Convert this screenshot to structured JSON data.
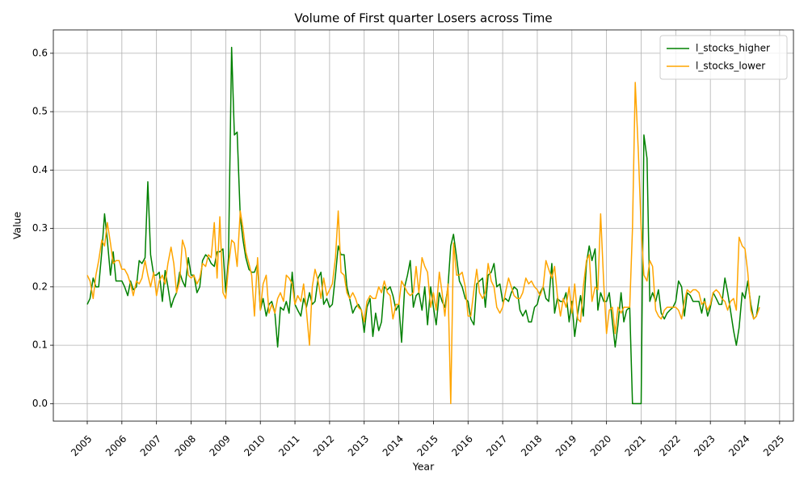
{
  "chart_data": {
    "type": "line",
    "title": "Volume of First quarter Losers across Time",
    "xlabel": "Year",
    "ylabel": "Value",
    "grid": true,
    "legend": "upper right",
    "xlim": [
      2004.02,
      2025.4
    ],
    "ylim": [
      -0.03,
      0.64
    ],
    "xticks": [
      2005,
      2006,
      2007,
      2008,
      2009,
      2010,
      2011,
      2012,
      2013,
      2014,
      2015,
      2016,
      2017,
      2018,
      2019,
      2020,
      2021,
      2022,
      2023,
      2024,
      2025
    ],
    "yticks": [
      {
        "value": 0,
        "label": "0.0"
      },
      0.1,
      0.2,
      0.3,
      0.4,
      0.5,
      0.6
    ],
    "x": [
      2005.0,
      2005.08,
      2005.17,
      2005.25,
      2005.33,
      2005.42,
      2005.5,
      2005.58,
      2005.67,
      2005.75,
      2005.83,
      2005.92,
      2006.0,
      2006.08,
      2006.17,
      2006.25,
      2006.33,
      2006.42,
      2006.5,
      2006.58,
      2006.67,
      2006.75,
      2006.83,
      2006.92,
      2007.0,
      2007.08,
      2007.17,
      2007.25,
      2007.33,
      2007.42,
      2007.5,
      2007.58,
      2007.67,
      2007.75,
      2007.83,
      2007.92,
      2008.0,
      2008.08,
      2008.17,
      2008.25,
      2008.33,
      2008.42,
      2008.5,
      2008.58,
      2008.67,
      2008.75,
      2008.83,
      2008.92,
      2009.0,
      2009.08,
      2009.17,
      2009.25,
      2009.33,
      2009.42,
      2009.5,
      2009.58,
      2009.67,
      2009.75,
      2009.83,
      2009.92,
      2010.0,
      2010.08,
      2010.17,
      2010.25,
      2010.33,
      2010.42,
      2010.5,
      2010.58,
      2010.67,
      2010.75,
      2010.83,
      2010.92,
      2011.0,
      2011.08,
      2011.17,
      2011.25,
      2011.33,
      2011.42,
      2011.5,
      2011.58,
      2011.67,
      2011.75,
      2011.83,
      2011.92,
      2012.0,
      2012.08,
      2012.17,
      2012.25,
      2012.33,
      2012.42,
      2012.5,
      2012.58,
      2012.67,
      2012.75,
      2012.83,
      2012.92,
      2013.0,
      2013.08,
      2013.17,
      2013.25,
      2013.33,
      2013.42,
      2013.5,
      2013.58,
      2013.67,
      2013.75,
      2013.83,
      2013.92,
      2014.0,
      2014.08,
      2014.17,
      2014.25,
      2014.33,
      2014.42,
      2014.5,
      2014.58,
      2014.67,
      2014.75,
      2014.83,
      2014.92,
      2015.0,
      2015.08,
      2015.17,
      2015.25,
      2015.33,
      2015.42,
      2015.5,
      2015.58,
      2015.67,
      2015.75,
      2015.83,
      2015.92,
      2016.0,
      2016.08,
      2016.17,
      2016.25,
      2016.33,
      2016.42,
      2016.5,
      2016.58,
      2016.67,
      2016.75,
      2016.83,
      2016.92,
      2017.0,
      2017.08,
      2017.17,
      2017.25,
      2017.33,
      2017.42,
      2017.5,
      2017.58,
      2017.67,
      2017.75,
      2017.83,
      2017.92,
      2018.0,
      2018.08,
      2018.17,
      2018.25,
      2018.33,
      2018.42,
      2018.5,
      2018.58,
      2018.67,
      2018.75,
      2018.83,
      2018.92,
      2019.0,
      2019.08,
      2019.17,
      2019.25,
      2019.33,
      2019.42,
      2019.5,
      2019.58,
      2019.67,
      2019.75,
      2019.83,
      2019.92,
      2020.0,
      2020.08,
      2020.17,
      2020.25,
      2020.33,
      2020.42,
      2020.5,
      2020.58,
      2020.67,
      2020.75,
      2020.83,
      2020.92,
      2021.0,
      2021.08,
      2021.17,
      2021.25,
      2021.33,
      2021.42,
      2021.5,
      2021.58,
      2021.67,
      2021.75,
      2021.83,
      2021.92,
      2022.0,
      2022.08,
      2022.17,
      2022.25,
      2022.33,
      2022.42,
      2022.5,
      2022.58,
      2022.67,
      2022.75,
      2022.83,
      2022.92,
      2023.0,
      2023.08,
      2023.17,
      2023.25,
      2023.33,
      2023.42,
      2023.5,
      2023.58,
      2023.67,
      2023.75,
      2023.83,
      2023.92,
      2024.0,
      2024.08,
      2024.17,
      2024.25,
      2024.33,
      2024.42
    ],
    "series": [
      {
        "name": "l_stocks_higher",
        "color": "#008000",
        "values": [
          0.17,
          0.18,
          0.215,
          0.2,
          0.2,
          0.26,
          0.325,
          0.28,
          0.22,
          0.26,
          0.21,
          0.21,
          0.21,
          0.2,
          0.185,
          0.21,
          0.195,
          0.2,
          0.245,
          0.24,
          0.25,
          0.38,
          0.255,
          0.22,
          0.22,
          0.225,
          0.175,
          0.228,
          0.2,
          0.165,
          0.18,
          0.19,
          0.225,
          0.21,
          0.2,
          0.25,
          0.22,
          0.22,
          0.19,
          0.2,
          0.245,
          0.255,
          0.25,
          0.24,
          0.235,
          0.26,
          0.26,
          0.265,
          0.19,
          0.25,
          0.61,
          0.46,
          0.465,
          0.32,
          0.28,
          0.25,
          0.23,
          0.225,
          0.225,
          0.24,
          0.16,
          0.18,
          0.15,
          0.17,
          0.175,
          0.155,
          0.097,
          0.165,
          0.16,
          0.175,
          0.155,
          0.225,
          0.17,
          0.16,
          0.15,
          0.18,
          0.165,
          0.19,
          0.17,
          0.175,
          0.215,
          0.225,
          0.17,
          0.18,
          0.165,
          0.17,
          0.22,
          0.27,
          0.255,
          0.255,
          0.2,
          0.18,
          0.155,
          0.165,
          0.17,
          0.16,
          0.122,
          0.165,
          0.18,
          0.115,
          0.155,
          0.125,
          0.14,
          0.2,
          0.195,
          0.2,
          0.185,
          0.16,
          0.17,
          0.105,
          0.2,
          0.22,
          0.245,
          0.165,
          0.185,
          0.19,
          0.16,
          0.2,
          0.135,
          0.2,
          0.165,
          0.135,
          0.19,
          0.175,
          0.165,
          0.2,
          0.27,
          0.29,
          0.25,
          0.21,
          0.2,
          0.18,
          0.175,
          0.145,
          0.135,
          0.205,
          0.21,
          0.215,
          0.165,
          0.22,
          0.225,
          0.24,
          0.2,
          0.205,
          0.175,
          0.18,
          0.175,
          0.19,
          0.2,
          0.195,
          0.16,
          0.15,
          0.16,
          0.14,
          0.14,
          0.165,
          0.17,
          0.19,
          0.2,
          0.18,
          0.175,
          0.24,
          0.155,
          0.18,
          0.175,
          0.175,
          0.19,
          0.14,
          0.175,
          0.115,
          0.155,
          0.185,
          0.15,
          0.24,
          0.27,
          0.245,
          0.265,
          0.16,
          0.19,
          0.175,
          0.175,
          0.19,
          0.14,
          0.097,
          0.135,
          0.19,
          0.14,
          0.16,
          0.165,
          0,
          0,
          0,
          0,
          0.46,
          0.42,
          0.175,
          0.19,
          0.175,
          0.195,
          0.155,
          0.145,
          0.155,
          0.16,
          0.165,
          0.175,
          0.21,
          0.2,
          0.15,
          0.19,
          0.185,
          0.175,
          0.175,
          0.175,
          0.155,
          0.18,
          0.15,
          0.165,
          0.19,
          0.18,
          0.17,
          0.17,
          0.215,
          0.19,
          0.16,
          0.125,
          0.1,
          0.13,
          0.19,
          0.18,
          0.21,
          0.17,
          0.145,
          0.15,
          0.185
        ]
      },
      {
        "name": "l_stocks_lower",
        "color": "#ffa500",
        "values": [
          0.22,
          0.21,
          0.18,
          0.22,
          0.245,
          0.28,
          0.27,
          0.31,
          0.275,
          0.24,
          0.245,
          0.245,
          0.23,
          0.23,
          0.22,
          0.205,
          0.185,
          0.21,
          0.205,
          0.215,
          0.245,
          0.22,
          0.2,
          0.225,
          0.185,
          0.21,
          0.22,
          0.205,
          0.24,
          0.268,
          0.24,
          0.19,
          0.21,
          0.28,
          0.265,
          0.22,
          0.215,
          0.22,
          0.205,
          0.215,
          0.24,
          0.235,
          0.255,
          0.25,
          0.31,
          0.215,
          0.32,
          0.19,
          0.18,
          0.235,
          0.28,
          0.275,
          0.235,
          0.33,
          0.3,
          0.26,
          0.24,
          0.22,
          0.15,
          0.25,
          0.16,
          0.205,
          0.22,
          0.155,
          0.17,
          0.155,
          0.18,
          0.19,
          0.175,
          0.22,
          0.215,
          0.205,
          0.17,
          0.185,
          0.175,
          0.205,
          0.16,
          0.1,
          0.2,
          0.23,
          0.21,
          0.18,
          0.215,
          0.185,
          0.195,
          0.205,
          0.25,
          0.33,
          0.225,
          0.22,
          0.19,
          0.18,
          0.19,
          0.18,
          0.165,
          0.16,
          0.14,
          0.175,
          0.185,
          0.18,
          0.18,
          0.2,
          0.19,
          0.21,
          0.19,
          0.185,
          0.145,
          0.17,
          0.17,
          0.21,
          0.2,
          0.19,
          0.185,
          0.19,
          0.235,
          0.19,
          0.25,
          0.235,
          0.225,
          0.165,
          0.19,
          0.16,
          0.225,
          0.19,
          0.15,
          0.205,
          0,
          0.275,
          0.22,
          0.22,
          0.225,
          0.2,
          0.15,
          0.15,
          0.195,
          0.23,
          0.19,
          0.18,
          0.19,
          0.24,
          0.21,
          0.2,
          0.165,
          0.155,
          0.165,
          0.19,
          0.215,
          0.2,
          0.185,
          0.18,
          0.18,
          0.19,
          0.215,
          0.205,
          0.21,
          0.2,
          0.195,
          0.185,
          0.2,
          0.245,
          0.23,
          0.215,
          0.235,
          0.185,
          0.15,
          0.18,
          0.165,
          0.2,
          0.155,
          0.205,
          0.145,
          0.14,
          0.2,
          0.245,
          0.255,
          0.175,
          0.2,
          0.195,
          0.325,
          0.205,
          0.12,
          0.16,
          0.165,
          0.12,
          0.165,
          0.155,
          0.165,
          0.165,
          0.165,
          0.3,
          0.55,
          0.43,
          0.3,
          0.22,
          0.21,
          0.245,
          0.235,
          0.16,
          0.15,
          0.145,
          0.16,
          0.165,
          0.165,
          0.165,
          0.165,
          0.16,
          0.145,
          0.175,
          0.195,
          0.19,
          0.195,
          0.195,
          0.19,
          0.17,
          0.175,
          0.16,
          0.17,
          0.19,
          0.195,
          0.19,
          0.18,
          0.175,
          0.16,
          0.175,
          0.18,
          0.16,
          0.285,
          0.27,
          0.265,
          0.225,
          0.16,
          0.145,
          0.15,
          0.165
        ]
      }
    ]
  }
}
